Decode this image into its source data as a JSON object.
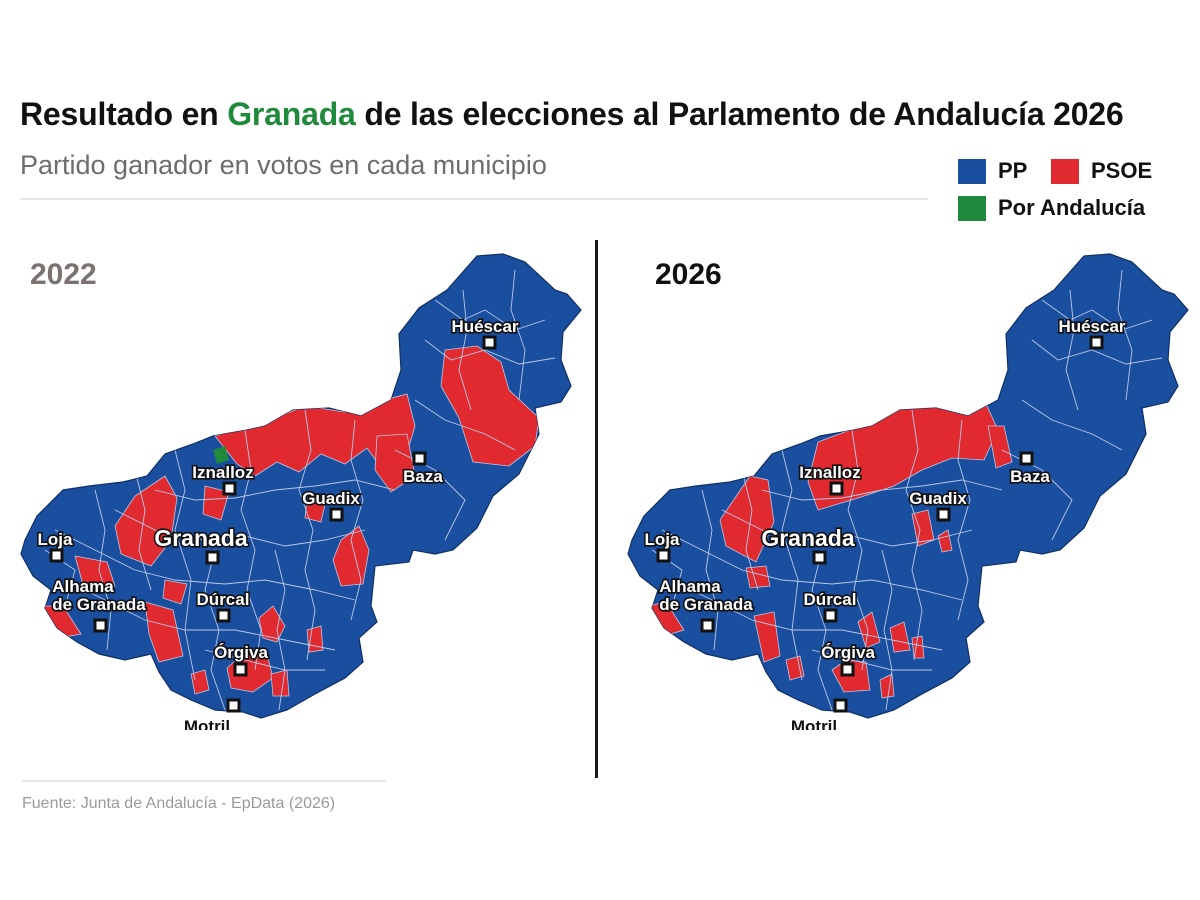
{
  "title": {
    "prefix": "Resultado en ",
    "highlight": "Granada",
    "suffix": " de las elecciones al Parlamento de Andalucía 2026"
  },
  "subtitle": "Partido ganador en votos en cada municipio",
  "colors": {
    "pp": "#1a4fa0",
    "psoe": "#e02a2f",
    "por_andalucia": "#1f8a3c",
    "borders": "#b9c8e6"
  },
  "legend": [
    {
      "label": "PP",
      "color": "#1a4fa0"
    },
    {
      "label": "PSOE",
      "color": "#e02a2f"
    },
    {
      "label": "Por Andalucía",
      "color": "#1f8a3c"
    }
  ],
  "maps": [
    {
      "year": "2022"
    },
    {
      "year": "2026"
    }
  ],
  "cities": {
    "huescar": "Huéscar",
    "baza": "Baza",
    "iznalloz": "Iznalloz",
    "guadix": "Guadix",
    "granada": "Granada",
    "loja": "Loja",
    "alhama_line1": "Alhama",
    "alhama_line2": "de Granada",
    "durcal": "Dúrcal",
    "orgiva": "Órgiva",
    "motril": "Motril"
  },
  "source": "Fuente: Junta de Andalucía - EpData (2026)"
}
